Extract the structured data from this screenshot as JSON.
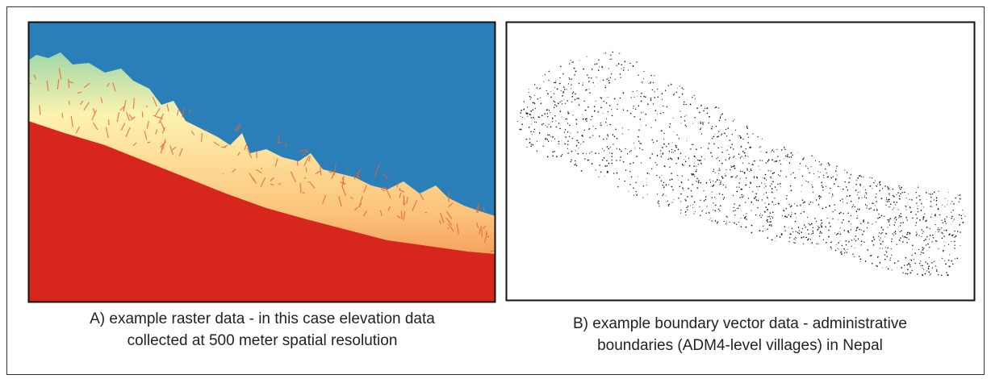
{
  "figure": {
    "panels": [
      {
        "caption": [
          "A) example raster data - in this case elevation data",
          "collected at 500 meter spatial resolution"
        ]
      },
      {
        "caption": [
          "B) example boundary vector data - administrative",
          "boundaries (ADM4-level villages) in Nepal"
        ]
      }
    ]
  }
}
